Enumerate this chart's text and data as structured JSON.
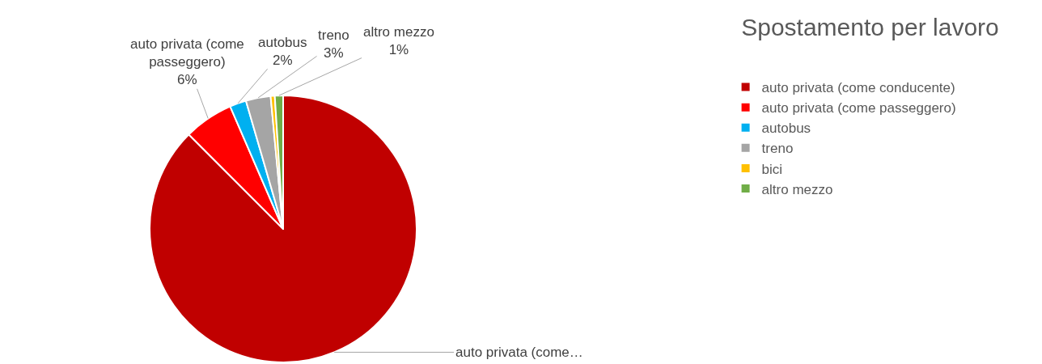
{
  "chart_data": {
    "type": "pie",
    "title": "Spostamento per lavoro",
    "categories": [
      "auto privata (come conducente)",
      "auto privata (come passeggero)",
      "autobus",
      "treno",
      "bici",
      "altro mezzo"
    ],
    "values": [
      87.5,
      6,
      2,
      3,
      0.5,
      1
    ],
    "colors": [
      "#c00000",
      "#ff0000",
      "#00b0f0",
      "#a5a5a5",
      "#ffc000",
      "#70ad47"
    ],
    "value_labels": [
      "auto privata (come…",
      "auto privata (come\npasseggero)\n6%",
      "autobus\n2%",
      "treno\n3%",
      null,
      "altro mezzo\n1%"
    ],
    "legend": "right"
  }
}
